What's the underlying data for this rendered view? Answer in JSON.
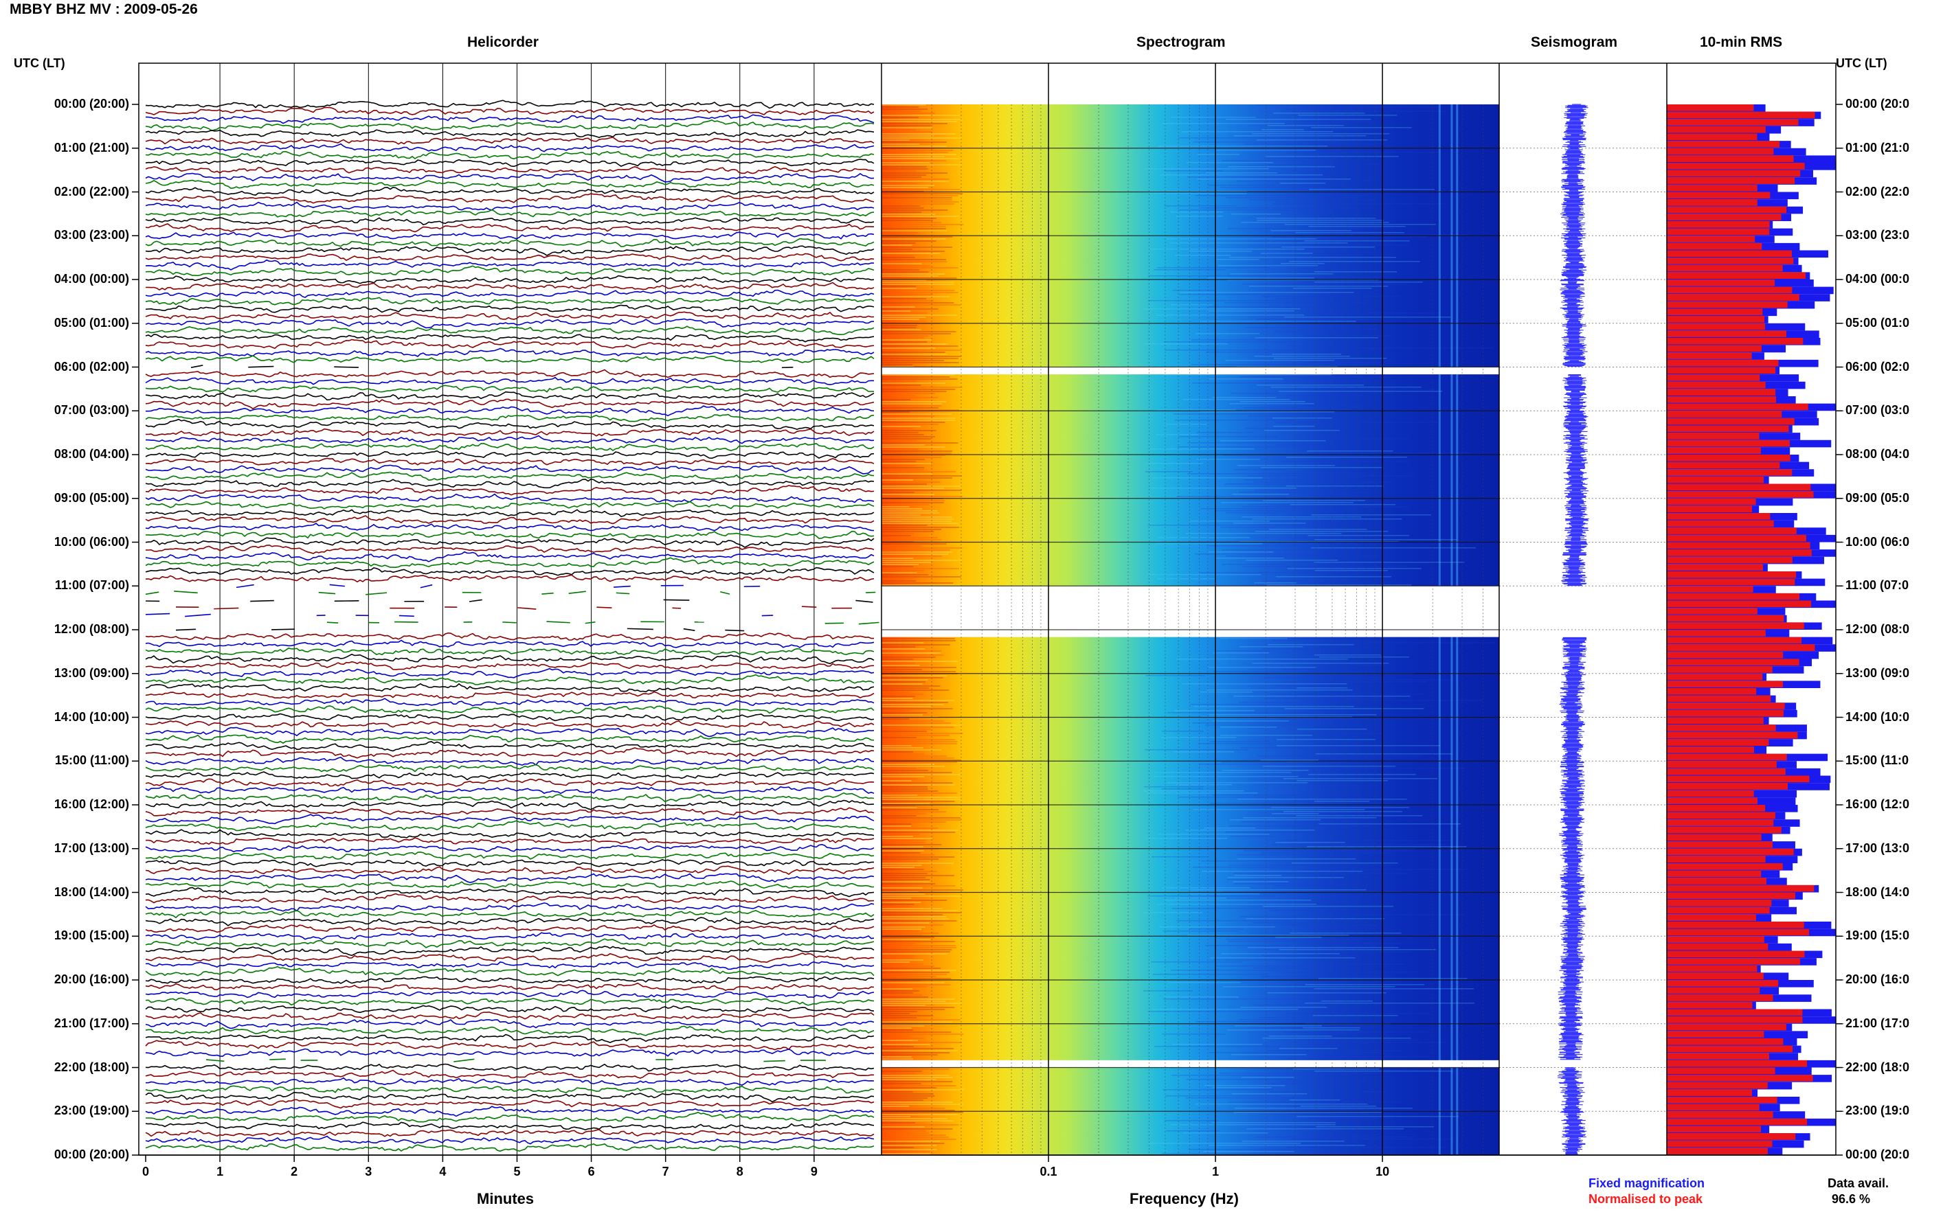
{
  "header": {
    "title": "MBBY BHZ MV : 2009-05-26",
    "utc_label": "UTC (LT)"
  },
  "panels": {
    "helicorder": "Helicorder",
    "spectrogram": "Spectrogram",
    "seismogram": "Seismogram",
    "rms": "10-min RMS"
  },
  "hour_labels": [
    "00:00 (20:00)",
    "01:00 (21:00)",
    "02:00 (22:00)",
    "03:00 (23:00)",
    "04:00 (00:00)",
    "05:00 (01:00)",
    "06:00 (02:00)",
    "07:00 (03:00)",
    "08:00 (04:00)",
    "09:00 (05:00)",
    "10:00 (06:00)",
    "11:00 (07:00)",
    "12:00 (08:00)",
    "13:00 (09:00)",
    "14:00 (10:00)",
    "15:00 (11:00)",
    "16:00 (12:00)",
    "17:00 (13:00)",
    "18:00 (14:00)",
    "19:00 (15:00)",
    "20:00 (16:00)",
    "21:00 (17:00)",
    "22:00 (18:00)",
    "23:00 (19:00)",
    "00:00 (20:00)"
  ],
  "right_hour_labels": [
    "00:00 (20:0",
    "01:00 (21:0",
    "02:00 (22:0",
    "03:00 (23:0",
    "04:00 (00:0",
    "05:00 (01:0",
    "06:00 (02:0",
    "07:00 (03:0",
    "08:00 (04:0",
    "09:00 (05:0",
    "10:00 (06:0",
    "11:00 (07:0",
    "12:00 (08:0",
    "13:00 (09:0",
    "14:00 (10:0",
    "15:00 (11:0",
    "16:00 (12:0",
    "17:00 (13:0",
    "18:00 (14:0",
    "19:00 (15:0",
    "20:00 (16:0",
    "21:00 (17:0",
    "22:00 (18:0",
    "23:00 (19:0",
    "00:00 (20:0"
  ],
  "helicorder_axis": {
    "xlabel": "Minutes",
    "ticks": [
      "0",
      "1",
      "2",
      "3",
      "4",
      "5",
      "6",
      "7",
      "8",
      "9"
    ]
  },
  "spectrogram_axis": {
    "xlabel": "Frequency (Hz)",
    "ticks": [
      "0.1",
      "1",
      "10"
    ],
    "tick_values": [
      0.1,
      1,
      10
    ],
    "freq_range": [
      0.01,
      50
    ],
    "scale": "log"
  },
  "legend": {
    "fixed": "Fixed magnification",
    "normalised": "Normalised to peak",
    "fixed_color": "#1a1aff",
    "normalised_color": "#ff1a1a"
  },
  "data_avail": {
    "label": "Data avail.",
    "value": "96.6 %"
  },
  "colors": {
    "trace_cycle": [
      "#000000",
      "#8b0000",
      "#0000cc",
      "#007a00"
    ],
    "rms_red": "#e8161b",
    "rms_blue": "#1a1aee"
  },
  "chart_data": {
    "type": "heatmap",
    "time_range_utc": [
      "00:00",
      "24:00"
    ],
    "trace_interval_minutes": 10,
    "trace_count": 144,
    "data_gaps_utc": [
      [
        "06:00",
        "06:10"
      ],
      [
        "11:00",
        "12:10"
      ],
      [
        "21:50",
        "22:00"
      ]
    ],
    "rms_interval_minutes": 10,
    "data_availability_percent": 96.6
  }
}
